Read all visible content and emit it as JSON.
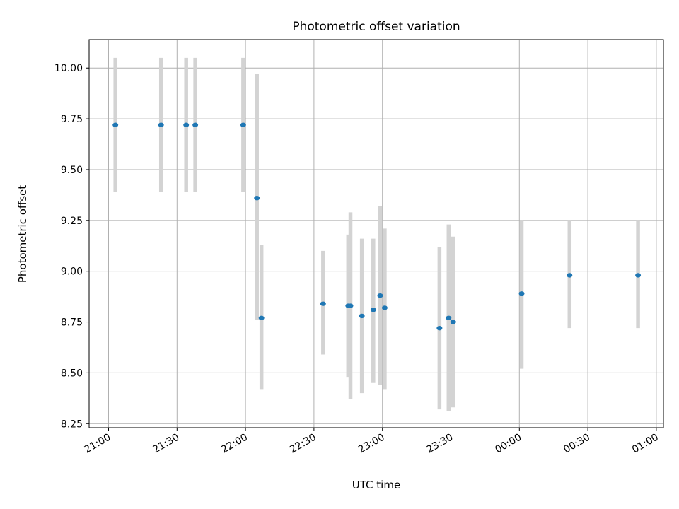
{
  "chart_data": {
    "type": "scatter",
    "title": "Photometric offset variation",
    "xlabel": "UTC time",
    "ylabel": "Photometric offset",
    "xlim": [
      "21:00",
      "01:00"
    ],
    "ylim": [
      8.23,
      10.14
    ],
    "grid": true,
    "x_ticks": [
      "21:00",
      "21:30",
      "22:00",
      "22:30",
      "23:00",
      "23:30",
      "00:00",
      "00:30",
      "01:00"
    ],
    "y_ticks": [
      "8.25",
      "8.50",
      "8.75",
      "9.00",
      "9.25",
      "9.50",
      "9.75",
      "10.00"
    ],
    "colors": {
      "point": "#1f77b4",
      "errorbar": "#d3d3d3",
      "grid": "#b0b0b0"
    },
    "points": [
      {
        "x": "21:03",
        "y": 9.72,
        "ylow": 9.39,
        "yhigh": 10.05
      },
      {
        "x": "21:23",
        "y": 9.72,
        "ylow": 9.39,
        "yhigh": 10.05
      },
      {
        "x": "21:34",
        "y": 9.72,
        "ylow": 9.39,
        "yhigh": 10.05
      },
      {
        "x": "21:38",
        "y": 9.72,
        "ylow": 9.39,
        "yhigh": 10.05
      },
      {
        "x": "21:59",
        "y": 9.72,
        "ylow": 9.39,
        "yhigh": 10.05
      },
      {
        "x": "22:05",
        "y": 9.36,
        "ylow": 8.76,
        "yhigh": 9.97
      },
      {
        "x": "22:07",
        "y": 8.77,
        "ylow": 8.42,
        "yhigh": 9.13
      },
      {
        "x": "22:34",
        "y": 8.84,
        "ylow": 8.59,
        "yhigh": 9.1
      },
      {
        "x": "22:45",
        "y": 8.83,
        "ylow": 8.48,
        "yhigh": 9.18
      },
      {
        "x": "22:46",
        "y": 8.83,
        "ylow": 8.37,
        "yhigh": 9.29
      },
      {
        "x": "22:51",
        "y": 8.78,
        "ylow": 8.4,
        "yhigh": 9.16
      },
      {
        "x": "22:56",
        "y": 8.81,
        "ylow": 8.45,
        "yhigh": 9.16
      },
      {
        "x": "22:59",
        "y": 8.88,
        "ylow": 8.44,
        "yhigh": 9.32
      },
      {
        "x": "23:01",
        "y": 8.82,
        "ylow": 8.42,
        "yhigh": 9.21
      },
      {
        "x": "23:25",
        "y": 8.72,
        "ylow": 8.32,
        "yhigh": 9.12
      },
      {
        "x": "23:29",
        "y": 8.77,
        "ylow": 8.31,
        "yhigh": 9.23
      },
      {
        "x": "23:31",
        "y": 8.75,
        "ylow": 8.33,
        "yhigh": 9.17
      },
      {
        "x": "00:01",
        "y": 8.89,
        "ylow": 8.52,
        "yhigh": 9.25
      },
      {
        "x": "00:22",
        "y": 8.98,
        "ylow": 8.72,
        "yhigh": 9.25
      },
      {
        "x": "00:52",
        "y": 8.98,
        "ylow": 8.72,
        "yhigh": 9.25
      }
    ]
  }
}
